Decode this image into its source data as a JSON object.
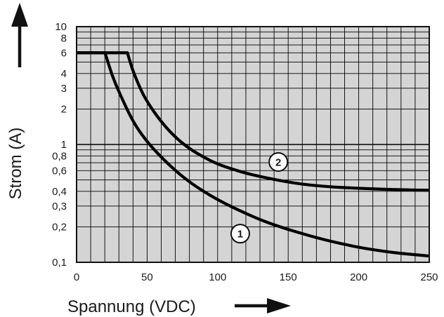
{
  "chart_data": {
    "type": "line",
    "xlabel": "Spannung (VDC)",
    "ylabel": "Strom (A)",
    "xlim": [
      0,
      250
    ],
    "ylim": [
      0.1,
      10
    ],
    "yscale": "log",
    "grid": true,
    "x_ticks": [
      0,
      50,
      100,
      150,
      200,
      250
    ],
    "x_tick_labels": [
      "0",
      "50",
      "100",
      "150",
      "200",
      "250"
    ],
    "y_ticks": [
      0.1,
      0.2,
      0.3,
      0.4,
      0.6,
      0.8,
      1,
      2,
      3,
      4,
      6,
      8,
      10
    ],
    "y_tick_labels": [
      "0,1",
      "0,2",
      "0,3",
      "0,4",
      "0,6",
      "0,8",
      "1",
      "2",
      "3",
      "4",
      "6",
      "8",
      "10"
    ],
    "series": [
      {
        "name": "1",
        "x": [
          0,
          20,
          21,
          25,
          30,
          40,
          50,
          60,
          70,
          80,
          90,
          100,
          110,
          120,
          130,
          140,
          150,
          160,
          170,
          180,
          190,
          200,
          210,
          220,
          230,
          240,
          250
        ],
        "y": [
          6,
          6,
          5.6,
          3.9,
          2.8,
          1.55,
          1.05,
          0.78,
          0.6,
          0.48,
          0.4,
          0.34,
          0.295,
          0.26,
          0.23,
          0.208,
          0.19,
          0.175,
          0.162,
          0.151,
          0.142,
          0.134,
          0.128,
          0.123,
          0.119,
          0.116,
          0.113
        ]
      },
      {
        "name": "2",
        "x": [
          0,
          36,
          38,
          40,
          45,
          50,
          60,
          70,
          80,
          90,
          100,
          110,
          120,
          130,
          140,
          150,
          160,
          170,
          180,
          190,
          200,
          210,
          220,
          230,
          240,
          250
        ],
        "y": [
          6,
          6,
          5.0,
          4.2,
          3.0,
          2.3,
          1.55,
          1.15,
          0.92,
          0.78,
          0.68,
          0.62,
          0.57,
          0.535,
          0.505,
          0.48,
          0.46,
          0.447,
          0.437,
          0.43,
          0.425,
          0.42,
          0.416,
          0.413,
          0.41,
          0.409
        ]
      }
    ],
    "curve_tags": [
      {
        "text": "1",
        "x": 116,
        "y": 0.175
      },
      {
        "text": "2",
        "x": 143,
        "y": 0.71
      }
    ]
  },
  "colors": {
    "plot_background": "#d4d4d4",
    "grid": "#000000",
    "curve": "#000000",
    "text": "#1a1a1a"
  }
}
